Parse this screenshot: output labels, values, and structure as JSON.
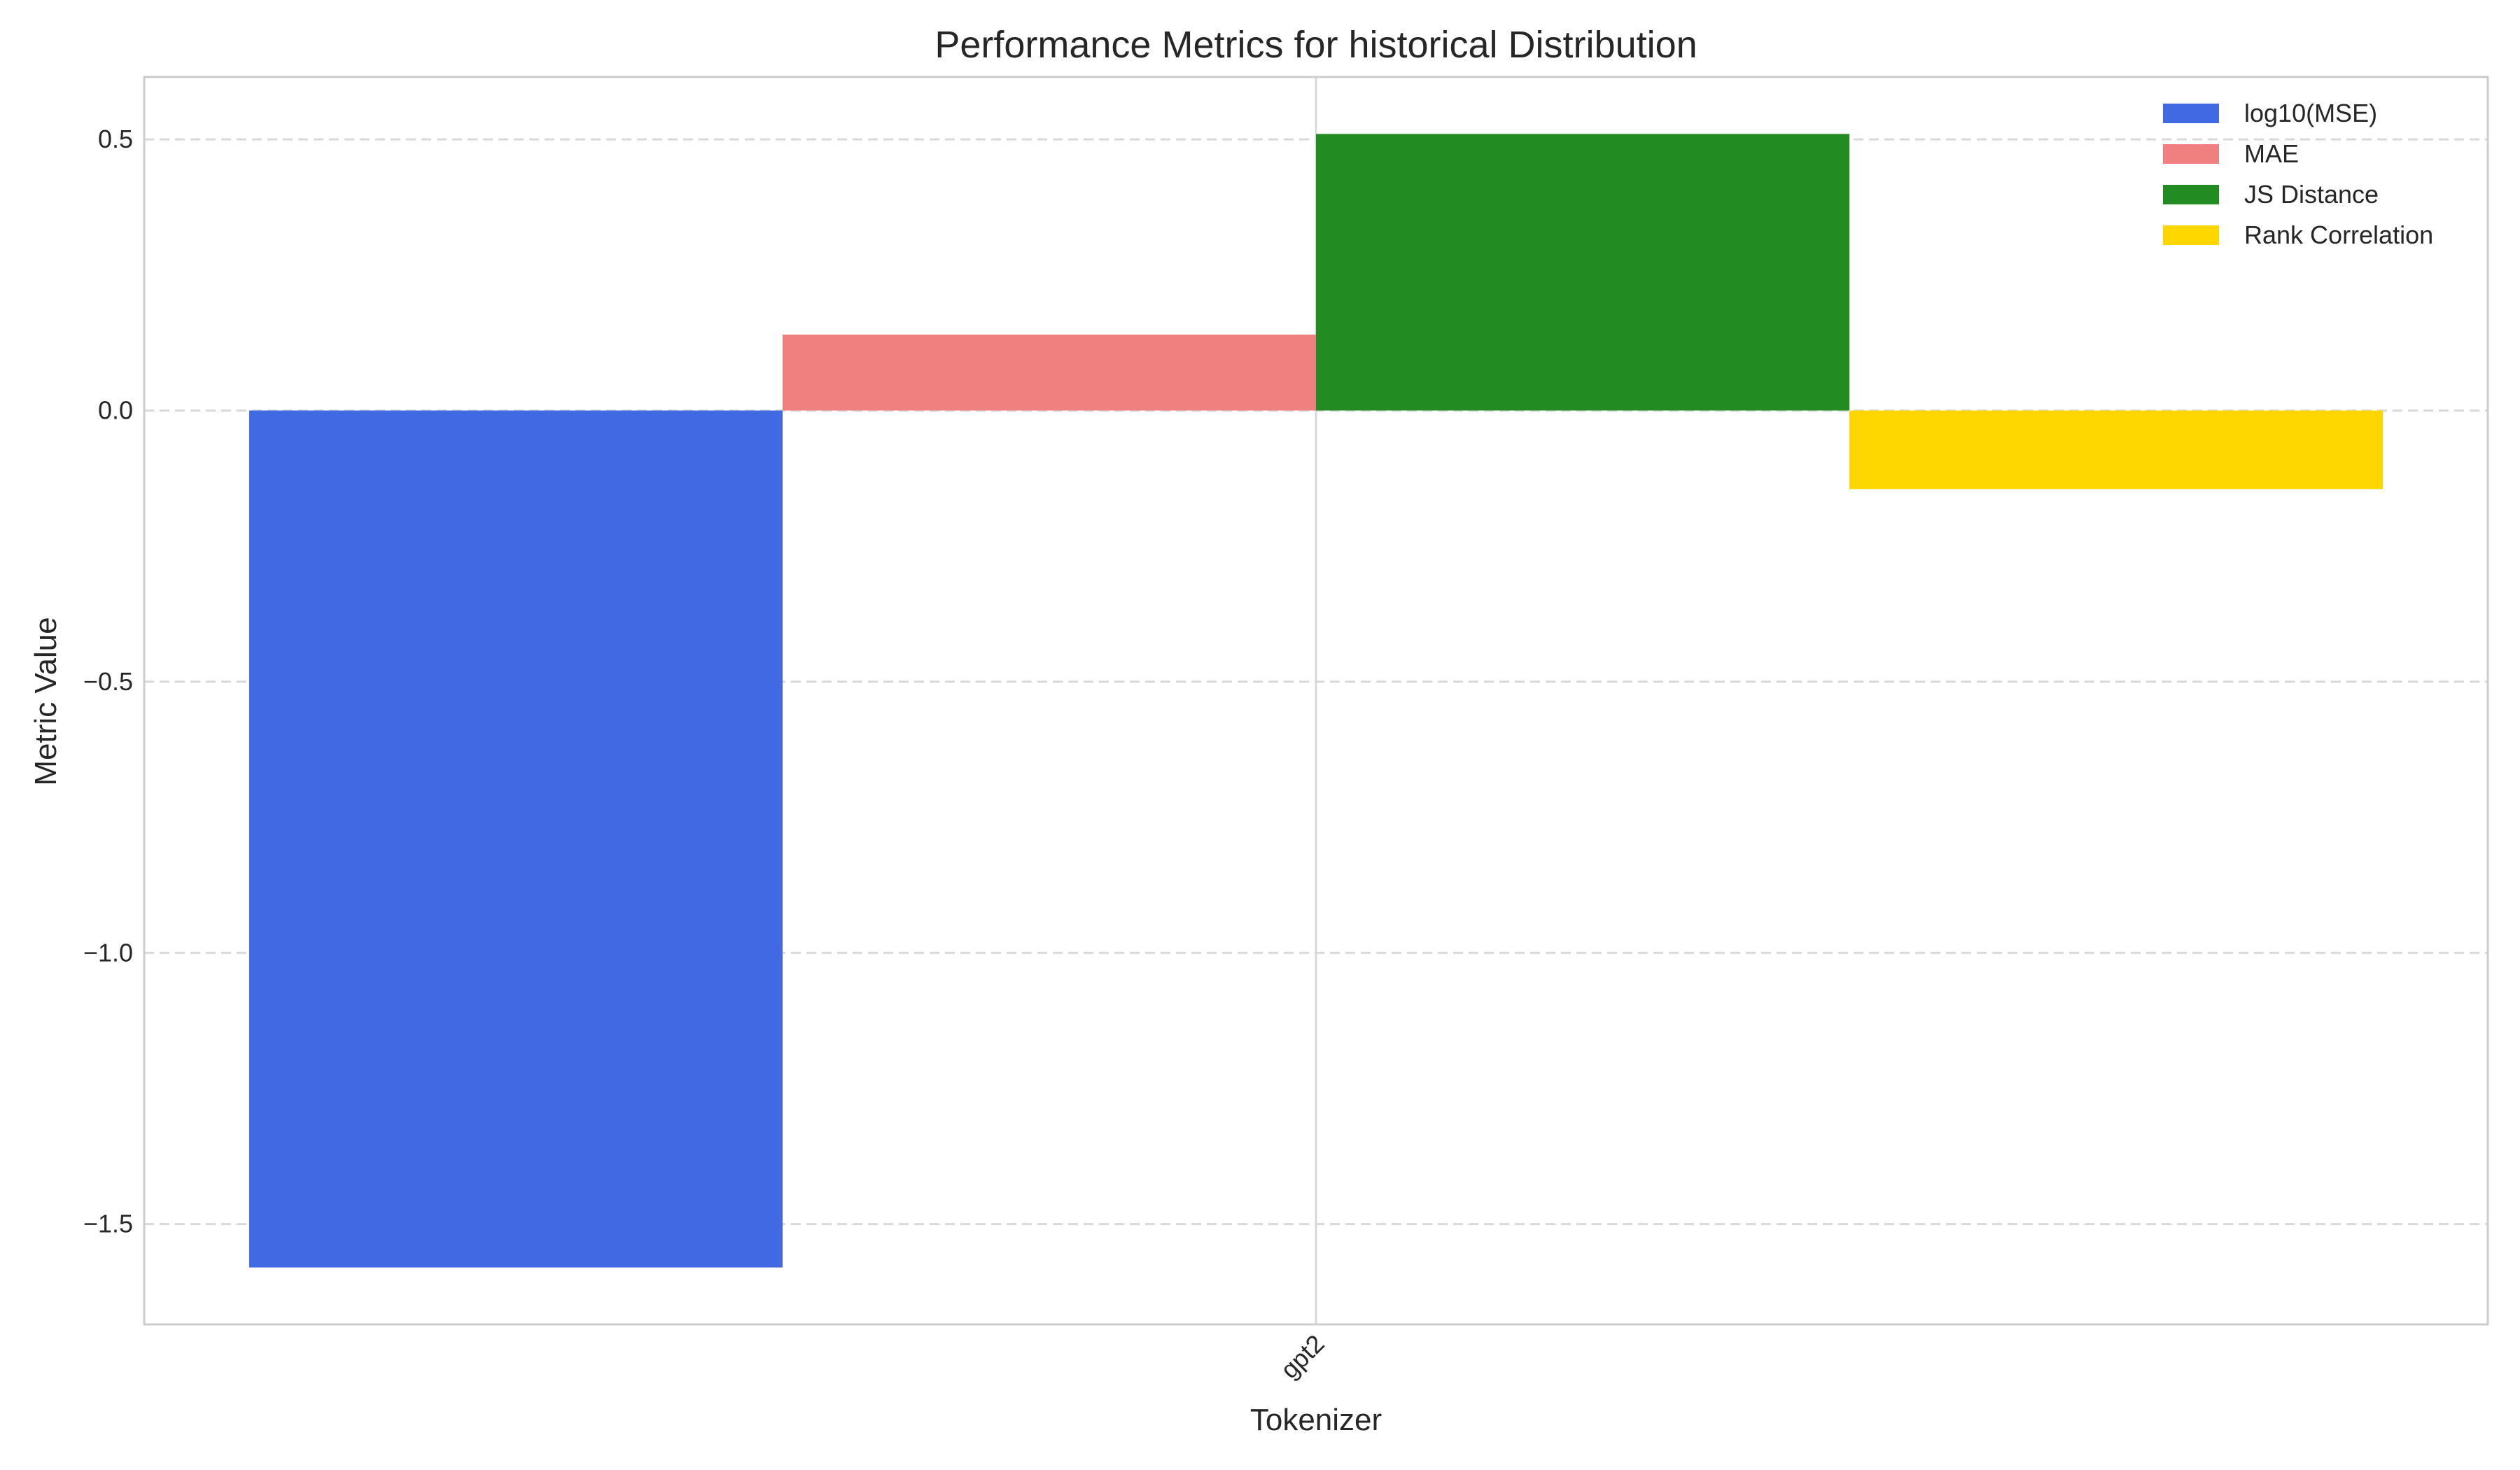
{
  "chart_data": {
    "type": "bar",
    "title": "Performance Metrics for historical Distribution",
    "xlabel": "Tokenizer",
    "ylabel": "Metric Value",
    "categories": [
      "gpt2"
    ],
    "series": [
      {
        "name": "log10(MSE)",
        "color": "#4169E1",
        "values": [
          -1.58
        ]
      },
      {
        "name": "MAE",
        "color": "#F08080",
        "values": [
          0.14
        ]
      },
      {
        "name": "JS Distance",
        "color": "#228B22",
        "values": [
          0.51
        ]
      },
      {
        "name": "Rank Correlation",
        "color": "#FFD700",
        "values": [
          -0.145
        ]
      }
    ],
    "ylim": [
      -1.685,
      0.615
    ],
    "yticks": [
      0.5,
      0.0,
      -0.5,
      -1.0,
      -1.5
    ],
    "ytick_labels": [
      "0.5",
      "0.0",
      "−0.5",
      "−1.0",
      "−1.5"
    ],
    "grid": true,
    "legend_position": "top-right"
  }
}
